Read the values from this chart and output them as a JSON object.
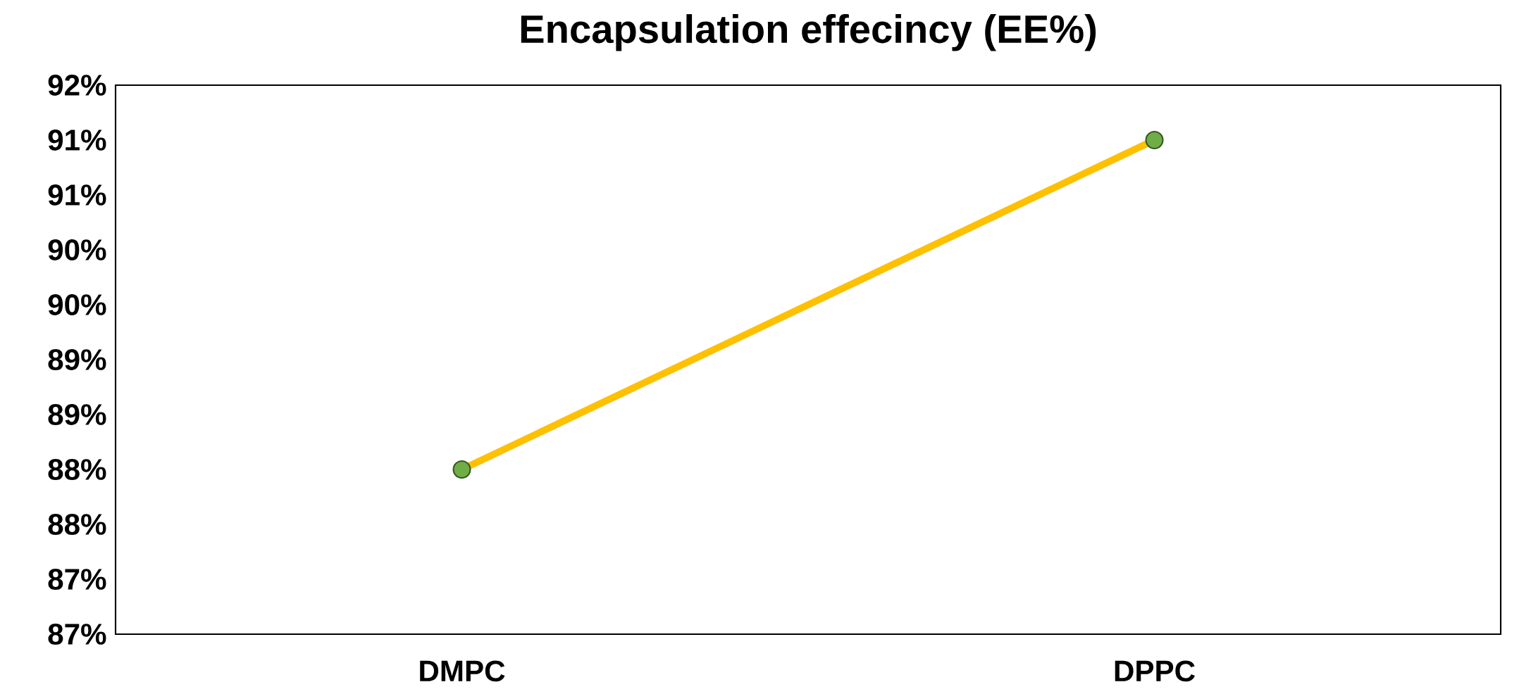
{
  "chart_data": {
    "type": "line",
    "title": "Encapsulation effecincy (EE%)",
    "categories": [
      "DMPC",
      "DPPC"
    ],
    "series": [
      {
        "color": "#ffc000",
        "values": [
          88,
          91
        ]
      }
    ],
    "marker": "circle",
    "grid": false,
    "legend": false,
    "ylim": [
      86.5,
      91.5
    ],
    "yticks": [
      {
        "value": 86.5,
        "label": "87%"
      },
      {
        "value": 87,
        "label": "87%"
      },
      {
        "value": 87.5,
        "label": "88%"
      },
      {
        "value": 88,
        "label": "88%"
      },
      {
        "value": 88.5,
        "label": "89%"
      },
      {
        "value": 89,
        "label": "89%"
      },
      {
        "value": 89.5,
        "label": "90%"
      },
      {
        "value": 90,
        "label": "90%"
      },
      {
        "value": 90.5,
        "label": "91%"
      },
      {
        "value": 91,
        "label": "91%"
      },
      {
        "value": 91.5,
        "label": "92%"
      }
    ]
  }
}
